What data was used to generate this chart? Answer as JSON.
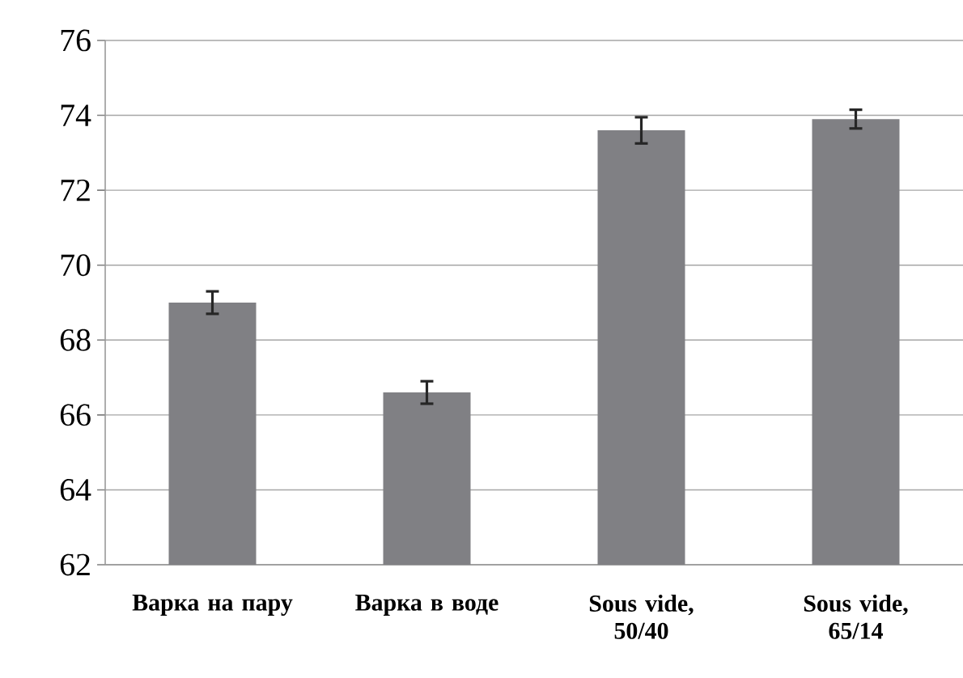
{
  "chart_data": {
    "type": "bar",
    "categories": [
      "Варка на пару",
      "Варка в воде",
      "Sous vide, 50/40",
      "Sous vide, 65/14"
    ],
    "values": [
      69.0,
      66.6,
      73.6,
      73.9
    ],
    "errors": [
      0.3,
      0.3,
      0.35,
      0.25
    ],
    "color": "#808084",
    "ylim": [
      62,
      76
    ],
    "yticks": [
      62,
      64,
      66,
      68,
      70,
      72,
      74,
      76
    ],
    "grid": "y"
  }
}
